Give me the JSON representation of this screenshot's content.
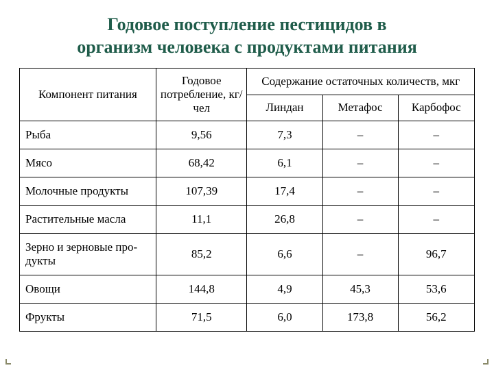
{
  "title": {
    "line1": "Годовое поступление пестицидов в",
    "line2": "организм человека с продуктами питания",
    "color": "#1f5c4a",
    "fontsize": 26
  },
  "table": {
    "header_fontsize": 17,
    "cell_fontsize": 17,
    "border_color": "#000000",
    "col_widths": [
      "30%",
      "20%",
      "16.6%",
      "16.6%",
      "16.8%"
    ],
    "headers": {
      "component": "Компонент питания",
      "annual": "Годовое потребление, кг/чел",
      "residual_group": "Содержание остаточных количеств, мкг",
      "lindan": "Линдан",
      "metafos": "Метафос",
      "karbofos": "Карбофос"
    },
    "rows": [
      {
        "label": "Рыба",
        "annual": "9,56",
        "lindan": "7,3",
        "metafos": "–",
        "karbofos": "–"
      },
      {
        "label": "Мясо",
        "annual": "68,42",
        "lindan": "6,1",
        "metafos": "–",
        "karbofos": "–"
      },
      {
        "label": "Молочные продукты",
        "annual": "107,39",
        "lindan": "17,4",
        "metafos": "–",
        "karbofos": "–"
      },
      {
        "label": "Растительные масла",
        "annual": "11,1",
        "lindan": "26,8",
        "metafos": "–",
        "karbofos": "–"
      },
      {
        "label": "Зерно и зерновые про-дукты",
        "annual": "85,2",
        "lindan": "6,6",
        "metafos": "–",
        "karbofos": "96,7"
      },
      {
        "label": "Овощи",
        "annual": "144,8",
        "lindan": "4,9",
        "metafos": "45,3",
        "karbofos": "53,6"
      },
      {
        "label": "Фрукты",
        "annual": "71,5",
        "lindan": "6,0",
        "metafos": "173,8",
        "karbofos": "56,2"
      }
    ]
  },
  "corners": {
    "color": "#8a8a6a"
  }
}
